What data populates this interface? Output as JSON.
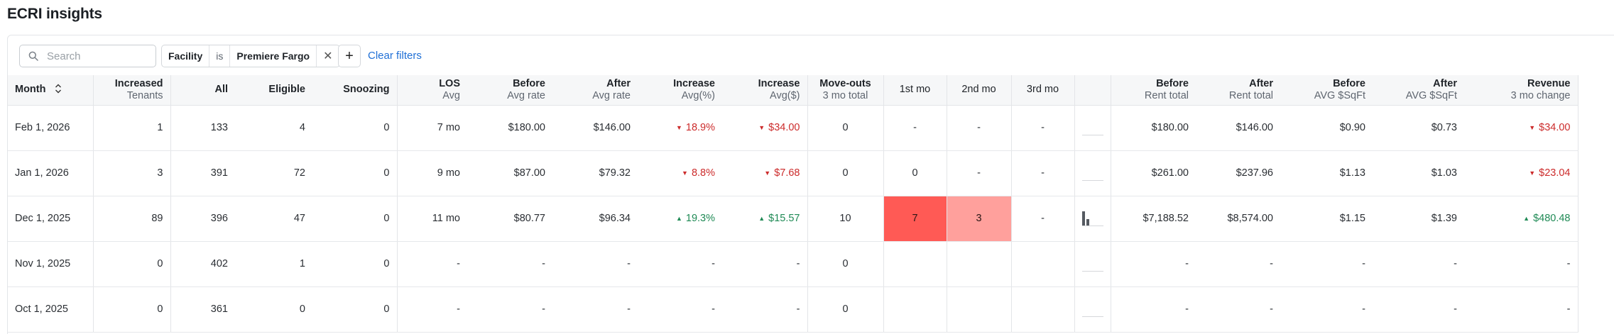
{
  "page": {
    "title": "ECRI insights"
  },
  "filters": {
    "search_placeholder": "Search",
    "chip": {
      "field": "Facility",
      "operator": "is",
      "value": "Premiere Fargo",
      "remove_icon": "close-icon"
    },
    "add_label": "+",
    "clear_label": "Clear filters"
  },
  "columns": [
    {
      "key": "month",
      "h1": "Month",
      "h2": "",
      "sortable": true
    },
    {
      "key": "increased",
      "h1": "Increased",
      "h2": "Tenants"
    },
    {
      "key": "all",
      "h1": "All",
      "h2": ""
    },
    {
      "key": "eligible",
      "h1": "Eligible",
      "h2": ""
    },
    {
      "key": "snoozing",
      "h1": "Snoozing",
      "h2": ""
    },
    {
      "key": "los",
      "h1": "LOS",
      "h2": "Avg"
    },
    {
      "key": "before_rate",
      "h1": "Before",
      "h2": "Avg rate"
    },
    {
      "key": "after_rate",
      "h1": "After",
      "h2": "Avg rate"
    },
    {
      "key": "inc_pct",
      "h1": "Increase",
      "h2": "Avg(%)"
    },
    {
      "key": "inc_usd",
      "h1": "Increase",
      "h2": "Avg($)"
    },
    {
      "key": "moveouts",
      "h1": "Move-outs",
      "h2": "3 mo total"
    },
    {
      "key": "mo1",
      "h1": "1st mo",
      "h2": ""
    },
    {
      "key": "mo2",
      "h1": "2nd mo",
      "h2": ""
    },
    {
      "key": "mo3",
      "h1": "3rd mo",
      "h2": ""
    },
    {
      "key": "spark",
      "h1": "",
      "h2": ""
    },
    {
      "key": "before_rent",
      "h1": "Before",
      "h2": "Rent total"
    },
    {
      "key": "after_rent",
      "h1": "After",
      "h2": "Rent total"
    },
    {
      "key": "before_sqft",
      "h1": "Before",
      "h2": "AVG $SqFt"
    },
    {
      "key": "after_sqft",
      "h1": "After",
      "h2": "AVG $SqFt"
    },
    {
      "key": "revenue",
      "h1": "Revenue",
      "h2": "3 mo change"
    }
  ],
  "rows": [
    {
      "month": "Feb 1, 2026",
      "increased": "1",
      "all": "133",
      "eligible": "4",
      "snoozing": "0",
      "los": "7 mo",
      "before_rate": "$180.00",
      "after_rate": "$146.00",
      "inc_pct": "18.9%",
      "inc_pct_dir": "down",
      "inc_usd": "$34.00",
      "inc_usd_dir": "down",
      "moveouts": "0",
      "mo1": "-",
      "mo2": "-",
      "mo3": "-",
      "spark": [
        0,
        0,
        0
      ],
      "before_rent": "$180.00",
      "after_rent": "$146.00",
      "before_sqft": "$0.90",
      "after_sqft": "$0.73",
      "revenue": "$34.00",
      "revenue_dir": "down"
    },
    {
      "month": "Jan 1, 2026",
      "increased": "3",
      "all": "391",
      "eligible": "72",
      "snoozing": "0",
      "los": "9 mo",
      "before_rate": "$87.00",
      "after_rate": "$79.32",
      "inc_pct": "8.8%",
      "inc_pct_dir": "down",
      "inc_usd": "$7.68",
      "inc_usd_dir": "down",
      "moveouts": "0",
      "mo1": "0",
      "mo2": "-",
      "mo3": "-",
      "spark": [
        0,
        0,
        0
      ],
      "before_rent": "$261.00",
      "after_rent": "$237.96",
      "before_sqft": "$1.13",
      "after_sqft": "$1.03",
      "revenue": "$23.04",
      "revenue_dir": "down"
    },
    {
      "month": "Dec 1, 2025",
      "increased": "89",
      "all": "396",
      "eligible": "47",
      "snoozing": "0",
      "los": "11 mo",
      "before_rate": "$80.77",
      "after_rate": "$96.34",
      "inc_pct": "19.3%",
      "inc_pct_dir": "up",
      "inc_usd": "$15.57",
      "inc_usd_dir": "up",
      "moveouts": "10",
      "mo1": "7",
      "mo1_heat": "hot",
      "mo2": "3",
      "mo2_heat": "warm",
      "mo3": "-",
      "spark": [
        7,
        3,
        0
      ],
      "before_rent": "$7,188.52",
      "after_rent": "$8,574.00",
      "before_sqft": "$1.15",
      "after_sqft": "$1.39",
      "revenue": "$480.48",
      "revenue_dir": "up"
    },
    {
      "month": "Nov 1, 2025",
      "increased": "0",
      "all": "402",
      "eligible": "1",
      "snoozing": "0",
      "los": "-",
      "before_rate": "-",
      "after_rate": "-",
      "inc_pct": "-",
      "inc_usd": "-",
      "moveouts": "0",
      "mo1": "",
      "mo2": "",
      "mo3": "",
      "spark": [
        0,
        0,
        0
      ],
      "before_rent": "-",
      "after_rent": "-",
      "before_sqft": "-",
      "after_sqft": "-",
      "revenue": "-"
    },
    {
      "month": "Oct 1, 2025",
      "increased": "0",
      "all": "361",
      "eligible": "0",
      "snoozing": "0",
      "los": "-",
      "before_rate": "-",
      "after_rate": "-",
      "inc_pct": "-",
      "inc_usd": "-",
      "moveouts": "0",
      "mo1": "",
      "mo2": "",
      "mo3": "",
      "spark": [
        0,
        0,
        0
      ],
      "before_rent": "-",
      "after_rent": "-",
      "before_sqft": "-",
      "after_sqft": "-",
      "revenue": "-"
    }
  ],
  "colors": {
    "negative": "#cc2b2b",
    "positive": "#1f8a55",
    "heat_hot": "#ff5a55",
    "heat_warm": "#ffa09c",
    "link": "#1f6fd6"
  }
}
